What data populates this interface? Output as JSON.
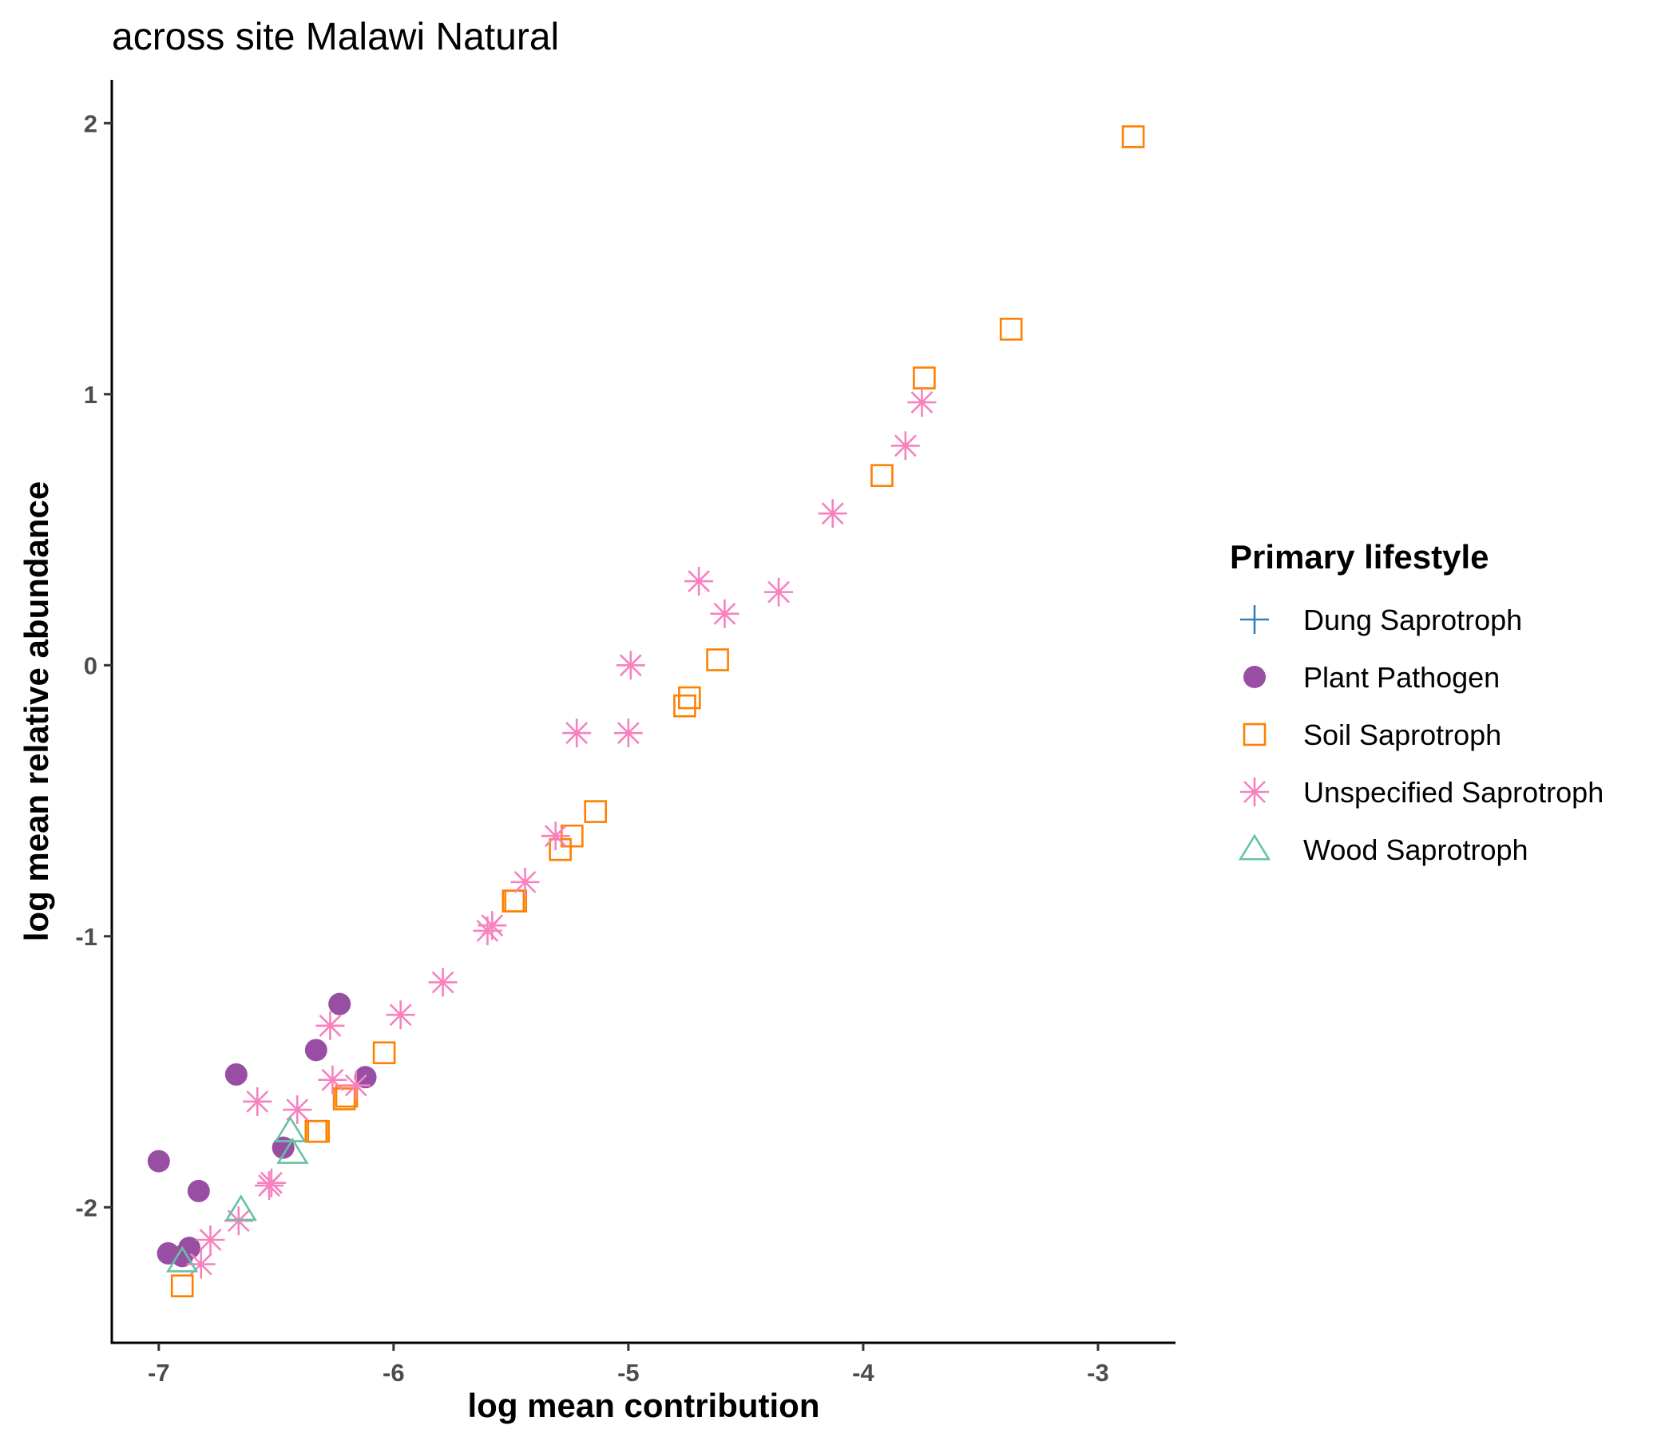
{
  "chart_data": {
    "type": "scatter",
    "title": "across site Malawi Natural",
    "xlabel": "log mean contribution",
    "ylabel": "log mean relative abundance",
    "xlim": [
      -7.2,
      -2.67
    ],
    "ylim": [
      -2.5,
      2.16
    ],
    "x_ticks": [
      -7,
      -6,
      -5,
      -4,
      -3
    ],
    "y_ticks": [
      -2,
      -1,
      0,
      1,
      2
    ],
    "x_tick_labels": [
      "-7",
      "-6",
      "-5",
      "-4",
      "-3"
    ],
    "y_tick_labels": [
      "-2",
      "-1",
      "0",
      "1",
      "2"
    ],
    "grid": false,
    "legend": {
      "title": "Primary lifestyle",
      "position": "right"
    },
    "series": [
      {
        "name": "Dung Saprotroph",
        "shape": "plus",
        "color": "#377EB8",
        "points": []
      },
      {
        "name": "Plant Pathogen",
        "shape": "circle",
        "color": "#984EA3",
        "points": [
          [
            -7.0,
            -1.83
          ],
          [
            -6.83,
            -1.94
          ],
          [
            -6.67,
            -1.51
          ],
          [
            -6.47,
            -1.78
          ],
          [
            -6.33,
            -1.42
          ],
          [
            -6.23,
            -1.25
          ],
          [
            -6.12,
            -1.52
          ],
          [
            -6.96,
            -2.17
          ],
          [
            -6.9,
            -2.18
          ],
          [
            -6.87,
            -2.15
          ]
        ]
      },
      {
        "name": "Soil Saprotroph",
        "shape": "square",
        "color": "#FF7F00",
        "points": [
          [
            -2.85,
            1.95
          ],
          [
            -3.37,
            1.24
          ],
          [
            -3.74,
            1.06
          ],
          [
            -3.92,
            0.7
          ],
          [
            -4.62,
            0.02
          ],
          [
            -4.74,
            -0.12
          ],
          [
            -4.76,
            -0.15
          ],
          [
            -5.14,
            -0.54
          ],
          [
            -5.24,
            -0.63
          ],
          [
            -5.29,
            -0.68
          ],
          [
            -5.48,
            -0.87
          ],
          [
            -5.49,
            -0.87
          ],
          [
            -6.04,
            -1.43
          ],
          [
            -6.2,
            -1.59
          ],
          [
            -6.21,
            -1.6
          ],
          [
            -6.32,
            -1.72
          ],
          [
            -6.33,
            -1.72
          ],
          [
            -6.9,
            -2.29
          ]
        ]
      },
      {
        "name": "Unspecified Saprotroph",
        "shape": "asterisk",
        "color": "#F781BF",
        "points": [
          [
            -3.75,
            0.97
          ],
          [
            -3.82,
            0.81
          ],
          [
            -4.13,
            0.56
          ],
          [
            -4.36,
            0.27
          ],
          [
            -4.59,
            0.19
          ],
          [
            -4.7,
            0.31
          ],
          [
            -4.99,
            0.0
          ],
          [
            -5.0,
            -0.25
          ],
          [
            -5.22,
            -0.25
          ],
          [
            -5.31,
            -0.63
          ],
          [
            -5.44,
            -0.8
          ],
          [
            -5.58,
            -0.96
          ],
          [
            -5.6,
            -0.98
          ],
          [
            -5.79,
            -1.17
          ],
          [
            -5.97,
            -1.29
          ],
          [
            -6.27,
            -1.33
          ],
          [
            -6.26,
            -1.53
          ],
          [
            -6.16,
            -1.55
          ],
          [
            -6.58,
            -1.61
          ],
          [
            -6.41,
            -1.64
          ],
          [
            -6.52,
            -1.91
          ],
          [
            -6.53,
            -1.92
          ],
          [
            -6.66,
            -2.05
          ],
          [
            -6.78,
            -2.12
          ],
          [
            -6.82,
            -2.21
          ]
        ]
      },
      {
        "name": "Wood Saprotroph",
        "shape": "triangle",
        "color": "#66C2A5",
        "points": [
          [
            -6.44,
            -1.72
          ],
          [
            -6.43,
            -1.8
          ],
          [
            -6.65,
            -2.01
          ],
          [
            -6.9,
            -2.2
          ]
        ]
      }
    ]
  }
}
